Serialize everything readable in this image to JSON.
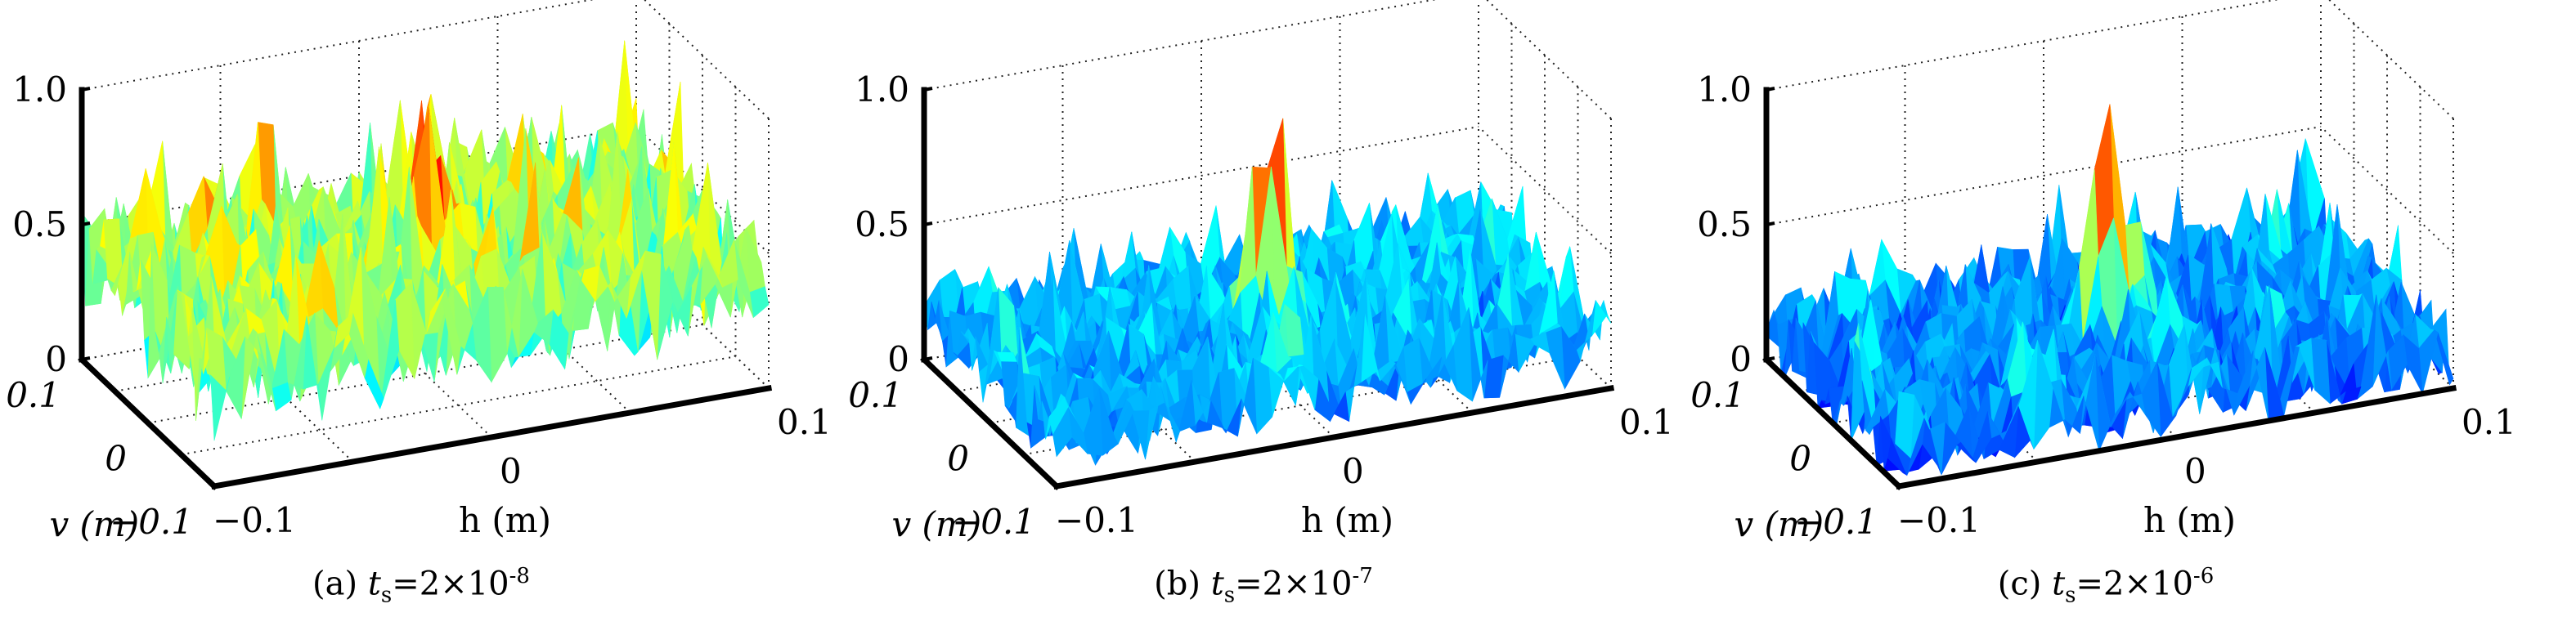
{
  "chart_data": [
    {
      "type": "surface3d",
      "caption": {
        "label": "(a)",
        "sym": "t",
        "sub": "s",
        "eq": "=2×10",
        "exp": "-8"
      },
      "xlabel": "h (m)",
      "ylabel": "v (m)",
      "zlim": [
        0,
        1.0
      ],
      "zticks": [
        "0",
        "0.5",
        "1.0"
      ],
      "xticks": [
        "-0.1",
        "0",
        "0.1"
      ],
      "yticks": [
        "0.1",
        "0",
        "-0.1"
      ],
      "xlim": [
        -0.1,
        0.1
      ],
      "ylim": [
        -0.1,
        0.1
      ],
      "grid": true,
      "colormap": "jet",
      "peak": {
        "h": 0,
        "v": 0,
        "z": 0.9
      },
      "background_level": 0.38,
      "background_spread": 0.22
    },
    {
      "type": "surface3d",
      "caption": {
        "label": "(b)",
        "sym": "t",
        "sub": "s",
        "eq": "=2×10",
        "exp": "-7"
      },
      "xlabel": "h (m)",
      "ylabel": "v (m)",
      "zlim": [
        0,
        1.0
      ],
      "zticks": [
        "0",
        "0.5",
        "1.0"
      ],
      "xticks": [
        "-0.1",
        "0",
        "0.1"
      ],
      "yticks": [
        "0.1",
        "0",
        "-0.1"
      ],
      "xlim": [
        -0.1,
        0.1
      ],
      "ylim": [
        -0.1,
        0.1
      ],
      "grid": true,
      "colormap": "jet",
      "peak": {
        "h": 0,
        "v": 0,
        "z": 0.9
      },
      "background_level": 0.16,
      "background_spread": 0.14
    },
    {
      "type": "surface3d",
      "caption": {
        "label": "(c)",
        "sym": "t",
        "sub": "s",
        "eq": "=2×10",
        "exp": "-6"
      },
      "xlabel": "h (m)",
      "ylabel": "v (m)",
      "zlim": [
        0,
        1.0
      ],
      "zticks": [
        "0",
        "0.5",
        "1.0"
      ],
      "xticks": [
        "-0.1",
        "0",
        "0.1"
      ],
      "yticks": [
        "0.1",
        "0",
        "-0.1"
      ],
      "xlim": [
        -0.1,
        0.1
      ],
      "ylim": [
        -0.1,
        0.1
      ],
      "grid": true,
      "colormap": "jet",
      "peak": {
        "h": 0,
        "v": 0,
        "z": 0.9
      },
      "background_level": 0.12,
      "background_spread": 0.16
    }
  ]
}
